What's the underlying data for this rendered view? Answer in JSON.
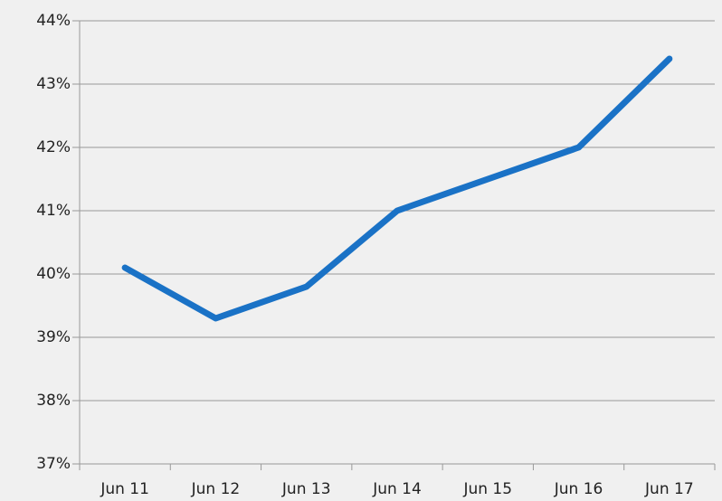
{
  "chart_data": {
    "type": "line",
    "categories": [
      "Jun 11",
      "Jun 12",
      "Jun 13",
      "Jun 14",
      "Jun 15",
      "Jun 16",
      "Jun 17"
    ],
    "values": [
      40.1,
      39.3,
      39.8,
      41.0,
      41.5,
      42.0,
      43.4
    ],
    "color": "#1a72c6",
    "ylim": [
      37,
      44
    ],
    "yticks": [
      {
        "value": 37,
        "label": "37%"
      },
      {
        "value": 38,
        "label": "38%"
      },
      {
        "value": 39,
        "label": "39%"
      },
      {
        "value": 40,
        "label": "40%"
      },
      {
        "value": 41,
        "label": "41%"
      },
      {
        "value": 42,
        "label": "42%"
      },
      {
        "value": 43,
        "label": "43%"
      },
      {
        "value": 44,
        "label": "44%"
      }
    ],
    "grid": true
  }
}
